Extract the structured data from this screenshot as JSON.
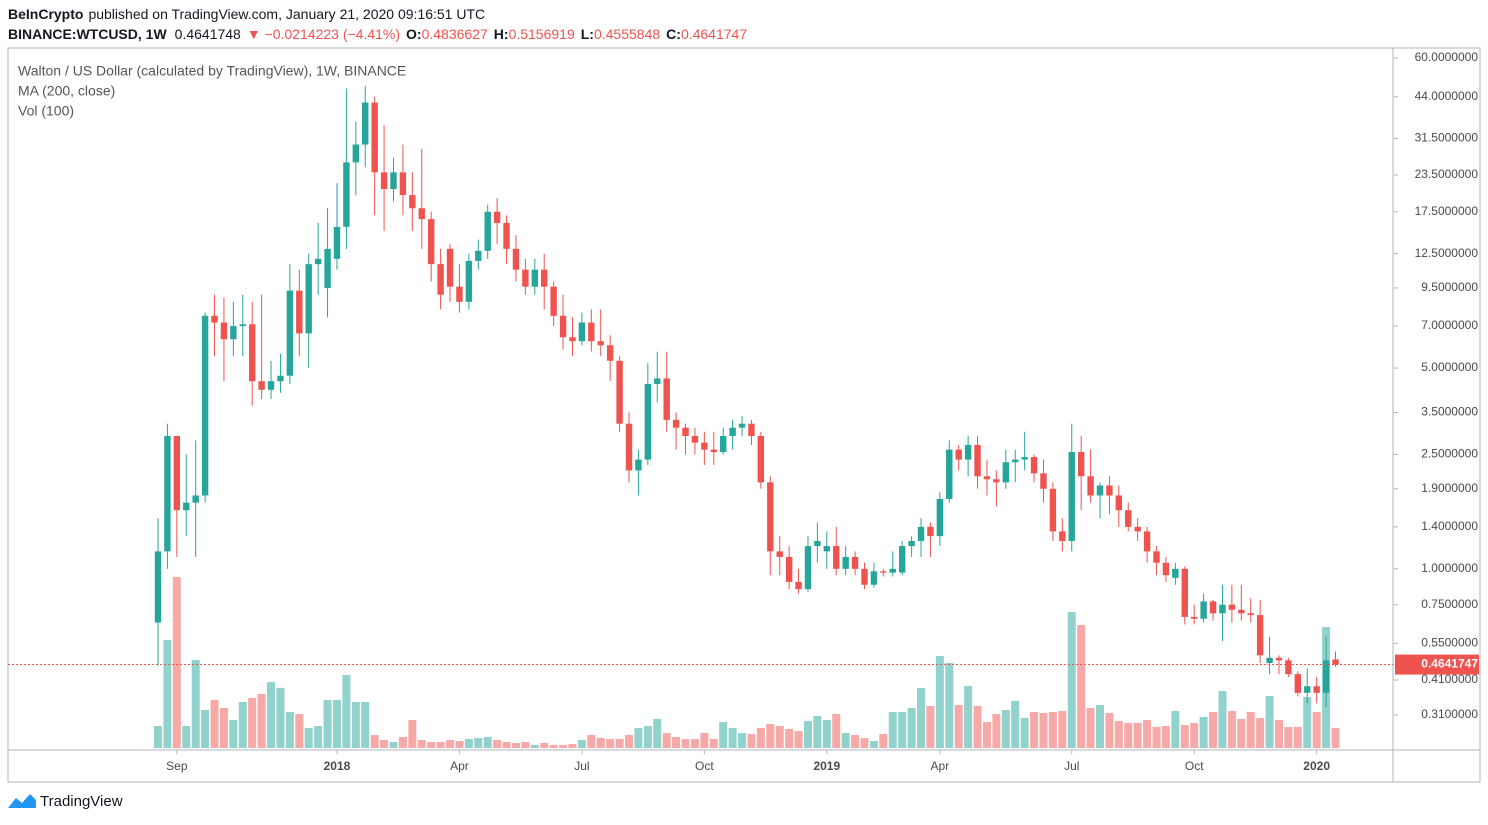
{
  "header": {
    "publisher": "BeInCrypto",
    "published": "published on TradingView.com, January 21, 2020 09:16:51 UTC",
    "symbol": "BINANCE:WTCUSD, 1W",
    "price": "0.4641748",
    "change": "▼ −0.0214223 (−4.41%)",
    "ohlc": [
      {
        "label": "O:",
        "value": "0.4836627"
      },
      {
        "label": "H:",
        "value": "0.5156919"
      },
      {
        "label": "L:",
        "value": "0.4555848"
      },
      {
        "label": "C:",
        "value": "0.4641747"
      }
    ]
  },
  "footer": {
    "brand": "TradingView"
  },
  "chart_data": {
    "type": "candlestick",
    "title": "Walton / US Dollar (calculated by TradingView), 1W, BINANCE",
    "legend_items": [
      "MA (200, close)",
      "Vol (100)"
    ],
    "up_color": "#26a69a",
    "down_color": "#ef5350",
    "log_scale": true,
    "ylim": [
      0.234,
      64
    ],
    "yticks": [
      {
        "value": 60,
        "label": "60.0000000"
      },
      {
        "value": 44,
        "label": "44.0000000"
      },
      {
        "value": 31.5,
        "label": "31.5000000"
      },
      {
        "value": 23.5,
        "label": "23.5000000"
      },
      {
        "value": 17.5,
        "label": "17.5000000"
      },
      {
        "value": 12.5,
        "label": "12.5000000"
      },
      {
        "value": 9.5,
        "label": "9.5000000"
      },
      {
        "value": 7,
        "label": "7.0000000"
      },
      {
        "value": 5,
        "label": "5.0000000"
      },
      {
        "value": 3.5,
        "label": "3.5000000"
      },
      {
        "value": 2.5,
        "label": "2.5000000"
      },
      {
        "value": 1.9,
        "label": "1.9000000"
      },
      {
        "value": 1.4,
        "label": "1.4000000"
      },
      {
        "value": 1,
        "label": "1.0000000"
      },
      {
        "value": 0.75,
        "label": "0.7500000"
      },
      {
        "value": 0.55,
        "label": "0.5500000"
      },
      {
        "value": 0.41,
        "label": "0.4100000"
      },
      {
        "value": 0.31,
        "label": "0.3100000"
      }
    ],
    "price_line": {
      "value": 0.4641747,
      "label": "0.4641747"
    },
    "categories": [
      null,
      null,
      "Sep",
      null,
      null,
      null,
      null,
      null,
      null,
      null,
      null,
      null,
      null,
      null,
      null,
      null,
      null,
      null,
      null,
      "2018",
      null,
      null,
      null,
      null,
      null,
      null,
      null,
      null,
      null,
      null,
      null,
      null,
      "Apr",
      null,
      null,
      null,
      null,
      null,
      null,
      null,
      null,
      null,
      null,
      null,
      null,
      "Jul",
      null,
      null,
      null,
      null,
      null,
      null,
      null,
      null,
      null,
      null,
      null,
      null,
      "Oct",
      null,
      null,
      null,
      null,
      null,
      null,
      null,
      null,
      null,
      null,
      null,
      null,
      "2019",
      null,
      null,
      null,
      null,
      null,
      null,
      null,
      null,
      null,
      null,
      null,
      "Apr",
      null,
      null,
      null,
      null,
      null,
      null,
      null,
      null,
      null,
      null,
      null,
      null,
      null,
      "Jul",
      null,
      null,
      null,
      null,
      null,
      null,
      null,
      null,
      null,
      null,
      null,
      null,
      "Oct",
      null,
      null,
      null,
      null,
      null,
      null,
      null,
      null,
      null,
      null,
      null,
      null,
      "2020",
      null,
      null
    ],
    "open": [
      0.65,
      1.15,
      2.9,
      1.6,
      1.7,
      1.8,
      7.6,
      7.2,
      6.3,
      7.0,
      7.1,
      4.5,
      4.2,
      4.5,
      4.7,
      9.3,
      6.6,
      11.5,
      9.5,
      12,
      15.5,
      26,
      30,
      42,
      24,
      21,
      24,
      20,
      18,
      16.5,
      11.5,
      13,
      9.6,
      8.5,
      11.8,
      12.8,
      17.5,
      16,
      13,
      11,
      9.6,
      11,
      9.6,
      7.6,
      6.4,
      6.2,
      7.2,
      6.2,
      6.0,
      5.3,
      3.2,
      2.2,
      2.4,
      4.4,
      4.6,
      3.3,
      3.1,
      2.9,
      2.75,
      2.6,
      2.55,
      2.9,
      3.1,
      3.2,
      2.9,
      2.0,
      1.15,
      1.1,
      0.9,
      0.85,
      1.2,
      1.15,
      1.2,
      1.0,
      1.1,
      1.0,
      0.88,
      0.98,
      0.97,
      0.97,
      1.2,
      1.25,
      1.4,
      1.3,
      1.75,
      2.6,
      2.4,
      2.7,
      2.1,
      2.05,
      2.0,
      2.35,
      2.4,
      2.45,
      2.15,
      1.9,
      1.35,
      1.25,
      2.55,
      2.1,
      1.8,
      1.95,
      1.8,
      1.6,
      1.4,
      1.35,
      1.15,
      1.05,
      0.93,
      1.0,
      0.68,
      0.67,
      0.77,
      0.7,
      0.75,
      0.72,
      0.7,
      0.69,
      0.47,
      0.49,
      0.48,
      0.43,
      0.37,
      0.39,
      0.37,
      0.4836627
    ],
    "high": [
      1.5,
      3.2,
      2.9,
      2.5,
      2.8,
      7.8,
      9.0,
      8.8,
      8.5,
      9.0,
      8.5,
      9.0,
      5.3,
      5.6,
      11.5,
      11.0,
      12.5,
      16,
      18,
      22,
      47,
      36,
      48,
      44,
      35,
      27,
      30,
      24,
      29,
      17.5,
      13,
      13.5,
      11.5,
      12.5,
      14,
      18.5,
      19.5,
      17,
      14.5,
      12,
      12,
      12.5,
      10,
      9.0,
      7.5,
      7.8,
      8.0,
      8.0,
      6.5,
      5.5,
      3.5,
      2.6,
      5.2,
      5.7,
      5.7,
      3.5,
      3.2,
      3.1,
      3.0,
      3.0,
      3.1,
      3.3,
      3.4,
      3.3,
      3.0,
      2.1,
      1.3,
      1.2,
      1.0,
      1.3,
      1.45,
      1.35,
      1.4,
      1.2,
      1.15,
      1.05,
      1.05,
      1.0,
      1.15,
      1.25,
      1.3,
      1.5,
      1.45,
      1.85,
      2.8,
      2.7,
      2.9,
      2.9,
      2.4,
      2.2,
      2.6,
      2.6,
      3.0,
      2.5,
      2.4,
      2.0,
      1.5,
      3.2,
      2.9,
      2.6,
      2.0,
      2.1,
      1.95,
      1.7,
      1.5,
      1.4,
      1.2,
      1.1,
      1.05,
      1.02,
      0.75,
      0.82,
      0.78,
      0.88,
      0.88,
      0.88,
      0.79,
      0.78,
      0.58,
      0.5,
      0.49,
      0.44,
      0.45,
      0.42,
      0.58,
      0.5156919
    ],
    "low": [
      0.46,
      1.0,
      1.1,
      1.3,
      1.1,
      1.7,
      5.5,
      4.5,
      5.5,
      5.5,
      3.7,
      3.9,
      3.9,
      4.1,
      4.4,
      5.5,
      5.0,
      9.0,
      7.5,
      11,
      13,
      20,
      25,
      17,
      15,
      19,
      17,
      15,
      13,
      10,
      8.0,
      8.5,
      7.8,
      8.0,
      11,
      12,
      13.5,
      11.5,
      10,
      9,
      9,
      8,
      7.0,
      5.8,
      5.5,
      6.0,
      5.7,
      5.5,
      4.5,
      3.0,
      2.0,
      1.8,
      2.3,
      3.8,
      3.0,
      2.6,
      2.5,
      2.5,
      2.3,
      2.3,
      2.5,
      2.6,
      2.9,
      2.7,
      1.9,
      0.95,
      0.95,
      0.85,
      0.82,
      0.83,
      1.05,
      1.0,
      0.95,
      0.95,
      0.95,
      0.85,
      0.86,
      0.94,
      0.94,
      0.95,
      1.1,
      1.1,
      1.1,
      1.2,
      1.7,
      2.2,
      2.1,
      1.9,
      1.8,
      1.65,
      1.9,
      2.0,
      2.2,
      2.0,
      1.7,
      1.25,
      1.15,
      1.15,
      1.6,
      1.7,
      1.5,
      1.55,
      1.4,
      1.35,
      1.25,
      1.05,
      0.95,
      0.9,
      0.88,
      0.64,
      0.64,
      0.65,
      0.66,
      0.56,
      0.65,
      0.66,
      0.65,
      0.47,
      0.43,
      0.43,
      0.42,
      0.36,
      0.34,
      0.34,
      0.33,
      0.4555848
    ],
    "close": [
      1.15,
      2.9,
      1.6,
      1.7,
      1.8,
      7.6,
      7.2,
      6.3,
      7.0,
      7.1,
      4.5,
      4.2,
      4.5,
      4.7,
      9.3,
      6.6,
      11.5,
      12.0,
      13,
      15.5,
      26,
      30,
      42,
      24,
      21,
      24,
      20,
      18,
      16.5,
      11.5,
      9.0,
      9.6,
      8.5,
      11.8,
      12.8,
      17.5,
      16,
      13,
      11,
      9.6,
      11,
      9.6,
      7.6,
      6.4,
      6.2,
      7.2,
      6.2,
      6.0,
      5.3,
      3.2,
      2.2,
      2.4,
      4.4,
      4.6,
      3.3,
      3.1,
      2.9,
      2.75,
      2.6,
      2.55,
      2.9,
      3.1,
      3.2,
      2.9,
      2.0,
      1.15,
      1.1,
      0.9,
      0.85,
      1.2,
      1.25,
      1.2,
      1.0,
      1.1,
      1.0,
      0.88,
      0.98,
      0.97,
      1.0,
      1.2,
      1.25,
      1.4,
      1.3,
      1.75,
      2.6,
      2.4,
      2.7,
      2.1,
      2.05,
      2.0,
      2.35,
      2.4,
      2.45,
      2.15,
      1.9,
      1.35,
      1.25,
      2.55,
      2.1,
      1.8,
      1.95,
      1.8,
      1.6,
      1.4,
      1.35,
      1.15,
      1.05,
      0.95,
      1.0,
      0.68,
      0.67,
      0.77,
      0.7,
      0.75,
      0.72,
      0.7,
      0.69,
      0.5,
      0.49,
      0.48,
      0.43,
      0.37,
      0.39,
      0.37,
      0.48,
      0.4641747
    ],
    "volume": [
      22,
      108,
      171,
      22,
      88,
      38,
      48,
      40,
      28,
      46,
      50,
      54,
      66,
      60,
      36,
      34,
      20,
      22,
      48,
      48,
      73,
      46,
      46,
      13,
      8,
      6,
      11,
      28,
      8,
      6,
      6,
      8,
      7,
      9,
      10,
      11,
      8,
      6,
      5,
      6,
      3,
      5,
      3,
      3,
      4,
      8,
      13,
      10,
      9,
      9,
      13,
      20,
      22,
      29,
      15,
      11,
      9,
      9,
      15,
      9,
      26,
      20,
      15,
      14,
      20,
      24,
      22,
      19,
      17,
      27,
      32,
      28,
      34,
      15,
      13,
      10,
      7,
      14,
      36,
      36,
      40,
      60,
      42,
      92,
      85,
      43,
      62,
      42,
      26,
      34,
      38,
      47,
      30,
      36,
      35,
      36,
      37,
      136,
      123,
      40,
      43,
      35,
      27,
      25,
      25,
      28,
      21,
      22,
      37,
      23,
      25,
      31,
      36,
      57,
      37,
      29,
      36,
      30,
      52,
      28,
      21,
      21,
      51,
      36,
      121,
      20
    ]
  }
}
